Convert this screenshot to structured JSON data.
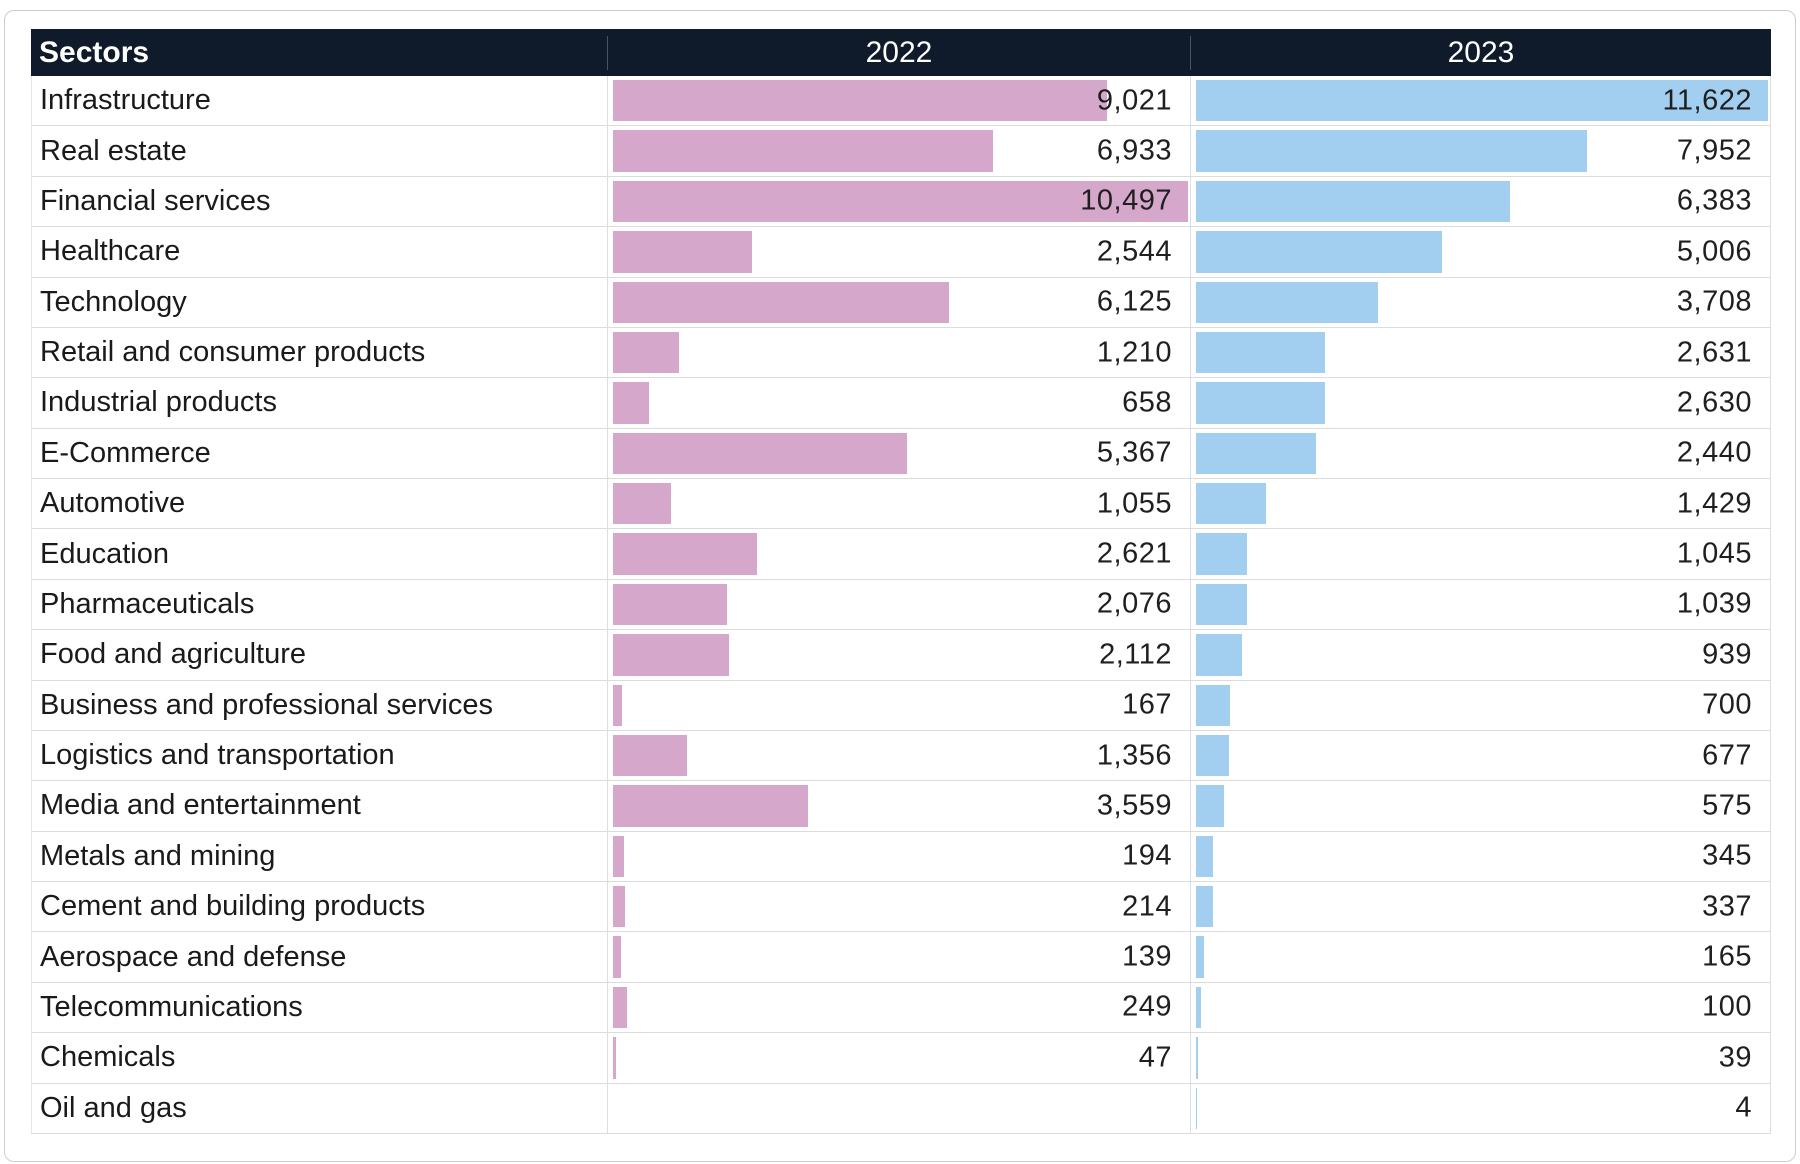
{
  "header": {
    "sectors_label": "Sectors",
    "col_2022": "2022",
    "col_2023": "2023"
  },
  "colors": {
    "header_background": "#0f1a2b",
    "header_text": "#ffffff",
    "bar_2022": "#d5a8cb",
    "bar_2023": "#a2cff0",
    "row_separator": "#dcdcdc",
    "value_text": "#1f1f1f"
  },
  "chart_data": {
    "type": "bar",
    "orientation": "horizontal",
    "title": "",
    "xlabel": "",
    "ylabel": "Sectors",
    "grid": "row separators only",
    "legend_position": "column headers (2022 / 2023)",
    "bar_scale_note": "bars scaled to each column max (2022 max 10497, 2023 max 11622)",
    "value_alignment": "right",
    "categories": [
      "Infrastructure",
      "Real estate",
      "Financial services",
      "Healthcare",
      "Technology",
      "Retail and consumer products",
      "Industrial products",
      "E-Commerce",
      "Automotive",
      "Education",
      "Pharmaceuticals",
      "Food and agriculture",
      "Business and professional services",
      "Logistics and transportation",
      "Media and entertainment",
      "Metals and mining",
      "Cement and building products",
      "Aerospace and defense",
      "Telecommunications",
      "Chemicals",
      "Oil and gas"
    ],
    "series": [
      {
        "name": "2022",
        "color": "#d5a8cb",
        "max": 10497,
        "values": [
          9021,
          6933,
          10497,
          2544,
          6125,
          1210,
          658,
          5367,
          1055,
          2621,
          2076,
          2112,
          167,
          1356,
          3559,
          194,
          214,
          139,
          249,
          47,
          null
        ],
        "display": [
          "9,021",
          "6,933",
          "10,497",
          "2,544",
          "6,125",
          "1,210",
          "658",
          "5,367",
          "1,055",
          "2,621",
          "2,076",
          "2,112",
          "167",
          "1,356",
          "3,559",
          "194",
          "214",
          "139",
          "249",
          "47",
          ""
        ]
      },
      {
        "name": "2023",
        "color": "#a2cff0",
        "max": 11622,
        "values": [
          11622,
          7952,
          6383,
          5006,
          3708,
          2631,
          2630,
          2440,
          1429,
          1045,
          1039,
          939,
          700,
          677,
          575,
          345,
          337,
          165,
          100,
          39,
          4
        ],
        "display": [
          "11,622",
          "7,952",
          "6,383",
          "5,006",
          "3,708",
          "2,631",
          "2,630",
          "2,440",
          "1,429",
          "1,045",
          "1,039",
          "939",
          "700",
          "677",
          "575",
          "345",
          "337",
          "165",
          "100",
          "39",
          "4"
        ]
      }
    ]
  }
}
